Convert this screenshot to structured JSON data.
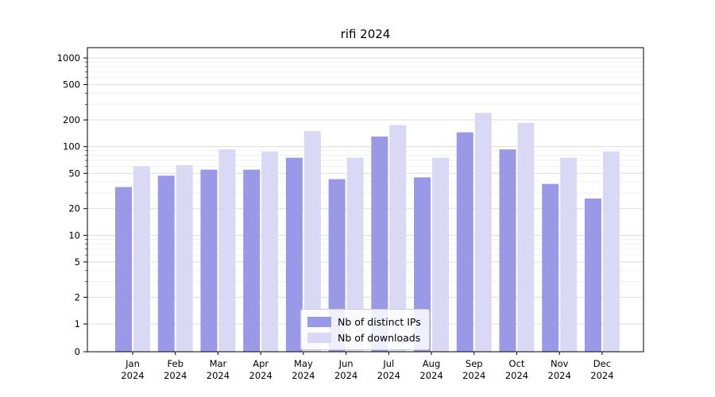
{
  "title": "rifi 2024",
  "chart_data": {
    "type": "bar",
    "title": "rifi 2024",
    "yscale": "symlog",
    "ylim": [
      0,
      1000
    ],
    "grid": true,
    "legend_position": "lower center",
    "year": "2024",
    "categories": [
      "Jan",
      "Feb",
      "Mar",
      "Apr",
      "May",
      "Jun",
      "Jul",
      "Aug",
      "Sep",
      "Oct",
      "Nov",
      "Dec"
    ],
    "y_ticks": [
      0,
      1,
      2,
      5,
      10,
      20,
      50,
      100,
      200,
      500,
      1000
    ],
    "series": [
      {
        "name": "Nb of distinct IPs",
        "color": "#9999e8",
        "values": [
          35,
          47,
          55,
          55,
          75,
          43,
          130,
          45,
          145,
          93,
          38,
          26
        ]
      },
      {
        "name": "Nb of downloads",
        "color": "#d9d9f6",
        "values": [
          60,
          62,
          93,
          88,
          150,
          75,
          175,
          75,
          240,
          185,
          75,
          88
        ]
      }
    ]
  }
}
